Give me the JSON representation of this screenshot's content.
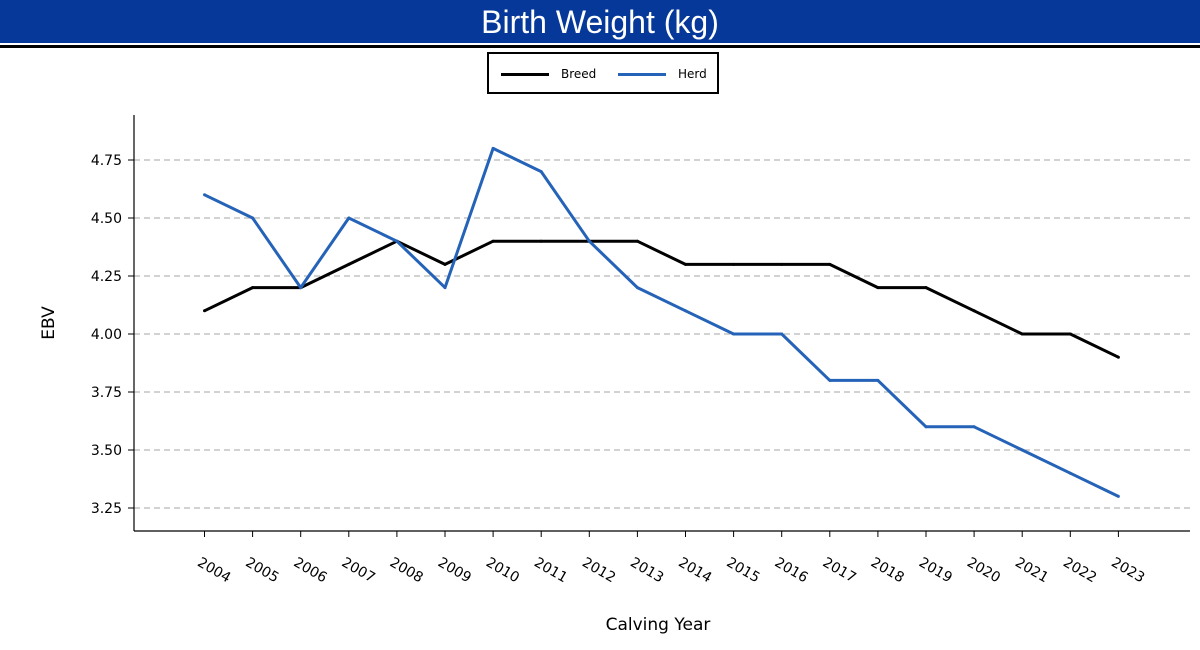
{
  "header": {
    "title": "Birth Weight (kg)"
  },
  "colors": {
    "header_bg": "#06389a",
    "breed": "#000000",
    "herd": "#2563b8"
  },
  "legend": {
    "items": [
      {
        "label": "Breed"
      },
      {
        "label": "Herd"
      }
    ]
  },
  "chart_data": {
    "type": "line",
    "xlabel": "Calving Year",
    "ylabel": "EBV",
    "categories": [
      "2004",
      "2005",
      "2006",
      "2007",
      "2008",
      "2009",
      "2010",
      "2011",
      "2012",
      "2013",
      "2014",
      "2015",
      "2016",
      "2017",
      "2018",
      "2019",
      "2020",
      "2021",
      "2022",
      "2023"
    ],
    "series": [
      {
        "name": "Breed",
        "color": "#000000",
        "values": [
          4.1,
          4.2,
          4.2,
          4.3,
          4.4,
          4.3,
          4.4,
          4.4,
          4.4,
          4.4,
          4.3,
          4.3,
          4.3,
          4.3,
          4.2,
          4.2,
          4.1,
          4.0,
          4.0,
          3.9
        ]
      },
      {
        "name": "Herd",
        "color": "#2563b8",
        "values": [
          4.6,
          4.5,
          4.2,
          4.5,
          4.4,
          4.2,
          4.8,
          4.7,
          4.4,
          4.2,
          4.1,
          4.0,
          4.0,
          3.8,
          3.8,
          3.6,
          3.6,
          3.5,
          3.4,
          3.3
        ]
      }
    ],
    "yticks": [
      "3.25",
      "3.50",
      "3.75",
      "4.00",
      "4.25",
      "4.50",
      "4.75"
    ],
    "ylim": [
      3.15,
      4.95
    ],
    "grid": "horizontal dashed",
    "legend_position": "top-center"
  }
}
